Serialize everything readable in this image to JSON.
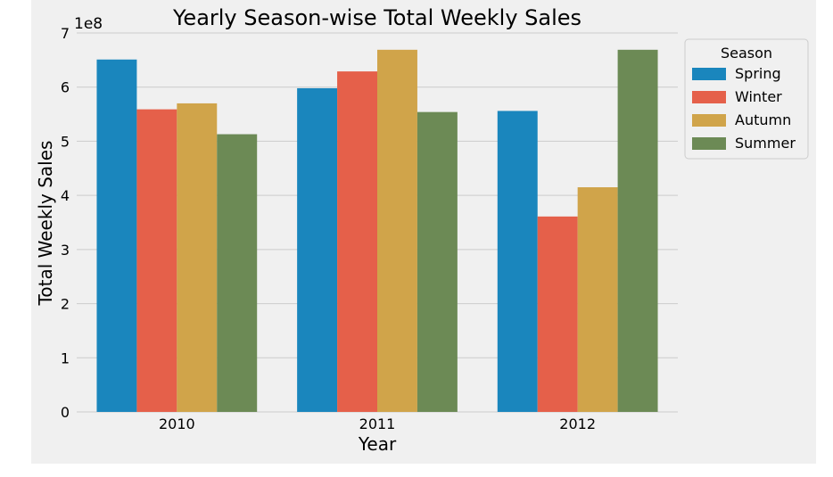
{
  "chart_data": {
    "type": "bar",
    "title": "Yearly Season-wise Total Weekly Sales",
    "xlabel": "Year",
    "ylabel": "Total Weekly Sales",
    "y_multiplier": "1e8",
    "ylim": [
      0,
      7
    ],
    "yticks": [
      "0",
      "1",
      "2",
      "3",
      "4",
      "5",
      "6",
      "7"
    ],
    "grid": "horizontal",
    "legend": {
      "title": "Season",
      "placement": "outside-top-right"
    },
    "categories": [
      "2010",
      "2011",
      "2012"
    ],
    "series": [
      {
        "name": "Spring",
        "color": "#1a86bd",
        "values": [
          6.51,
          5.98,
          5.56
        ]
      },
      {
        "name": "Winter",
        "color": "#e5604a",
        "values": [
          5.59,
          6.29,
          3.61
        ]
      },
      {
        "name": "Autumn",
        "color": "#d0a44a",
        "values": [
          5.7,
          6.69,
          4.15
        ]
      },
      {
        "name": "Summer",
        "color": "#6c8a55",
        "values": [
          5.13,
          5.54,
          6.69
        ]
      }
    ],
    "colors": {
      "figure_bg": "#f0f0f0",
      "plot_bg": "#f0f0f0",
      "grid": "#cbcbcb",
      "text": "#000000"
    }
  }
}
